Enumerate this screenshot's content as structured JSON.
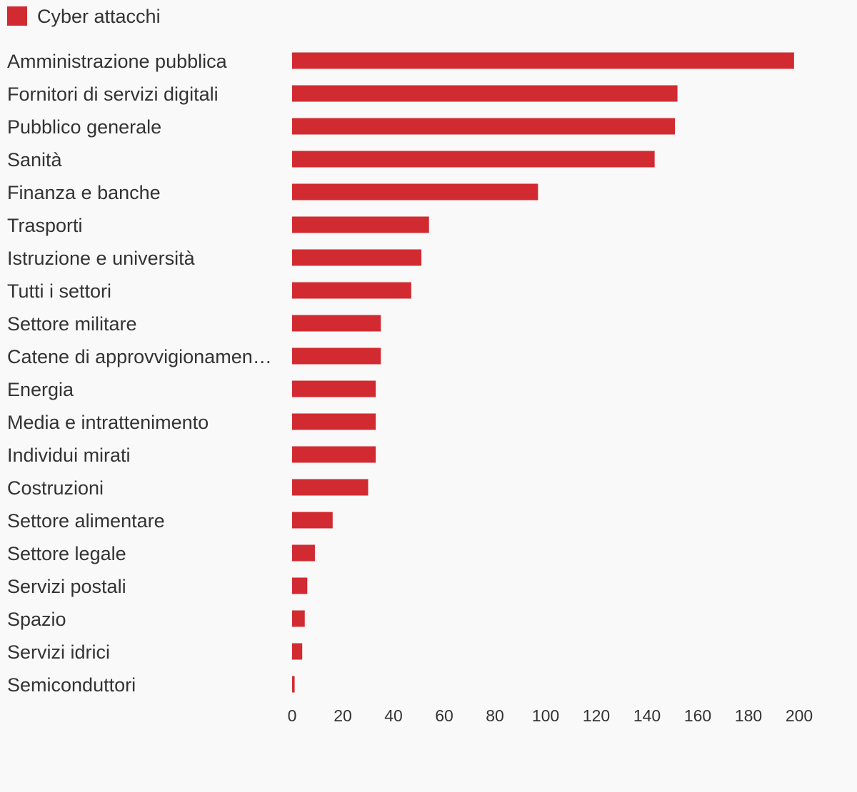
{
  "colors": {
    "bar": "#d12b31",
    "text": "#333333",
    "background": "#f9f9f9"
  },
  "legend": {
    "label": "Cyber attacchi",
    "placement": "top-left"
  },
  "chart_data": {
    "type": "bar",
    "orientation": "horizontal",
    "categories": [
      "Amministrazione pubblica",
      "Fornitori di servizi digitali",
      "Pubblico generale",
      "Sanità",
      "Finanza e banche",
      "Trasporti",
      "Istruzione e università",
      "Tutti i settori",
      "Settore militare",
      "Catene di approvvigionamen…",
      "Energia",
      "Media e intrattenimento",
      "Individui mirati",
      "Costruzioni",
      "Settore alimentare",
      "Settore legale",
      "Servizi postali",
      "Spazio",
      "Servizi idrici",
      "Semiconduttori"
    ],
    "series": [
      {
        "name": "Cyber attacchi",
        "values": [
          198,
          152,
          151,
          143,
          97,
          54,
          51,
          47,
          35,
          35,
          33,
          33,
          33,
          30,
          16,
          9,
          6,
          5,
          4,
          1
        ]
      }
    ],
    "xlim": [
      0,
      200
    ],
    "xticks": [
      "0",
      "20",
      "40",
      "60",
      "80",
      "100",
      "120",
      "140",
      "160",
      "180",
      "200"
    ],
    "grid": false
  }
}
